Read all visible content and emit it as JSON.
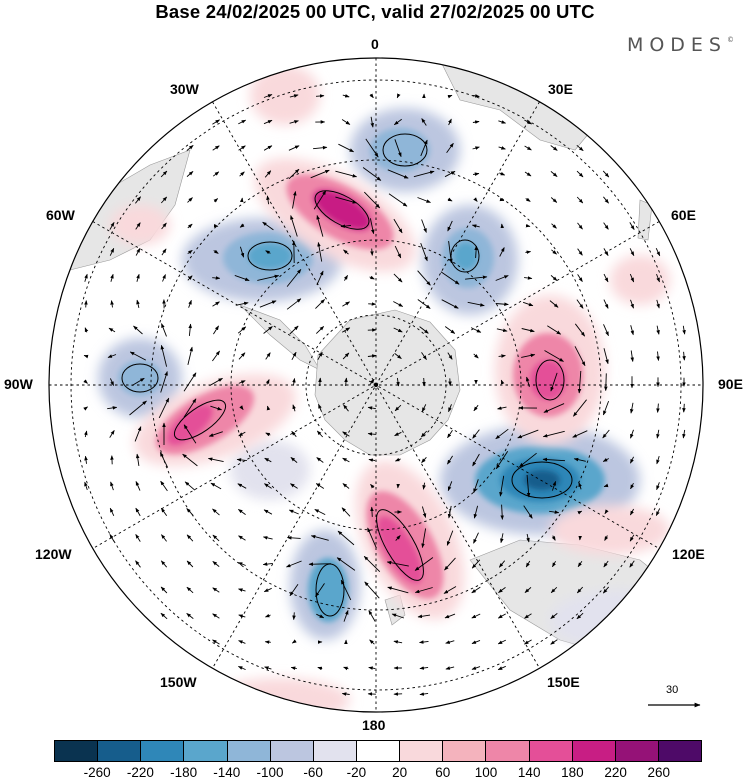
{
  "title": "Base 24/02/2025 00 UTC, valid 27/02/2025 00 UTC",
  "brand": "MODES",
  "brand_mark": "©",
  "longitude_labels": {
    "lon_0": "0",
    "lon_30e": "30E",
    "lon_60e": "60E",
    "lon_90e": "90E",
    "lon_120e": "120E",
    "lon_150e": "150E",
    "lon_180": "180",
    "lon_150w": "150W",
    "lon_120w": "120W",
    "lon_90w": "90W",
    "lon_60w": "60W",
    "lon_30w": "30W"
  },
  "vector_reference": {
    "label": "30"
  },
  "colorbar": {
    "ticks": [
      "-260",
      "-220",
      "-180",
      "-140",
      "-100",
      "-60",
      "-20",
      "20",
      "60",
      "100",
      "140",
      "180",
      "220",
      "260"
    ],
    "colors": [
      "#0a3350",
      "#165d8c",
      "#2f87b8",
      "#5aa6cc",
      "#8fb6d8",
      "#bcc6e0",
      "#e2e2ee",
      "#ffffff",
      "#f9d9dc",
      "#f4b3bd",
      "#ee86a8",
      "#e44f98",
      "#c81e84",
      "#951277",
      "#4e0a68"
    ]
  },
  "colors": {
    "land": "#e6e6e6",
    "frame": "#000000"
  }
}
